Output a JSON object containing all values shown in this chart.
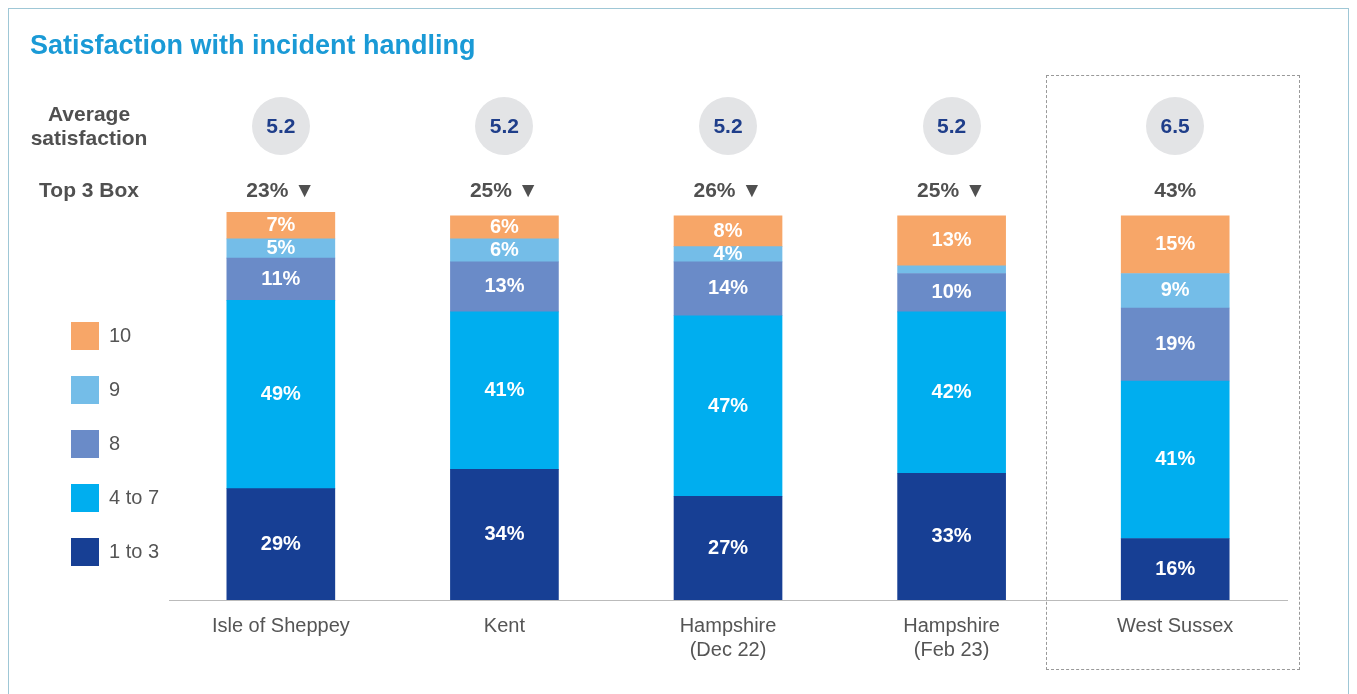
{
  "chart_data": {
    "type": "bar",
    "title": "Satisfaction with incident handling",
    "categories": [
      "Isle of Sheppey",
      "Kent",
      "Hampshire (Dec 22)",
      "Hampshire (Feb 23)",
      "West Sussex"
    ],
    "stacked": true,
    "legend": "left",
    "grid": false,
    "series": [
      {
        "name": "1 to 3",
        "color": "#173f94",
        "values": [
          29,
          34,
          27,
          33,
          16
        ],
        "value_labels": [
          "29%",
          "34%",
          "27%",
          "33%",
          "16%"
        ]
      },
      {
        "name": "4 to 7",
        "color": "#00aeef",
        "values": [
          49,
          41,
          47,
          42,
          41
        ],
        "value_labels": [
          "49%",
          "41%",
          "47%",
          "42%",
          "41%"
        ]
      },
      {
        "name": "8",
        "color": "#6a8bc8",
        "values": [
          11,
          13,
          14,
          10,
          19
        ],
        "value_labels": [
          "11%",
          "13%",
          "14%",
          "10%",
          "19%"
        ]
      },
      {
        "name": "9",
        "color": "#74bde8",
        "values": [
          5,
          6,
          4,
          2,
          9
        ],
        "value_labels": [
          "5%",
          "6%",
          "4%",
          null,
          "9%"
        ]
      },
      {
        "name": "10",
        "color": "#f7a668",
        "values": [
          7,
          6,
          8,
          13,
          15
        ],
        "value_labels": [
          "7%",
          "6%",
          "8%",
          "13%",
          "15%"
        ]
      }
    ],
    "annotations": [
      "Average satisfaction",
      "5.2",
      "5.2",
      "5.2",
      "5.2",
      "6.5",
      "Top 3 Box",
      "23% ▼",
      "25% ▼",
      "26% ▼",
      "25% ▼",
      "43%"
    ]
  }
}
